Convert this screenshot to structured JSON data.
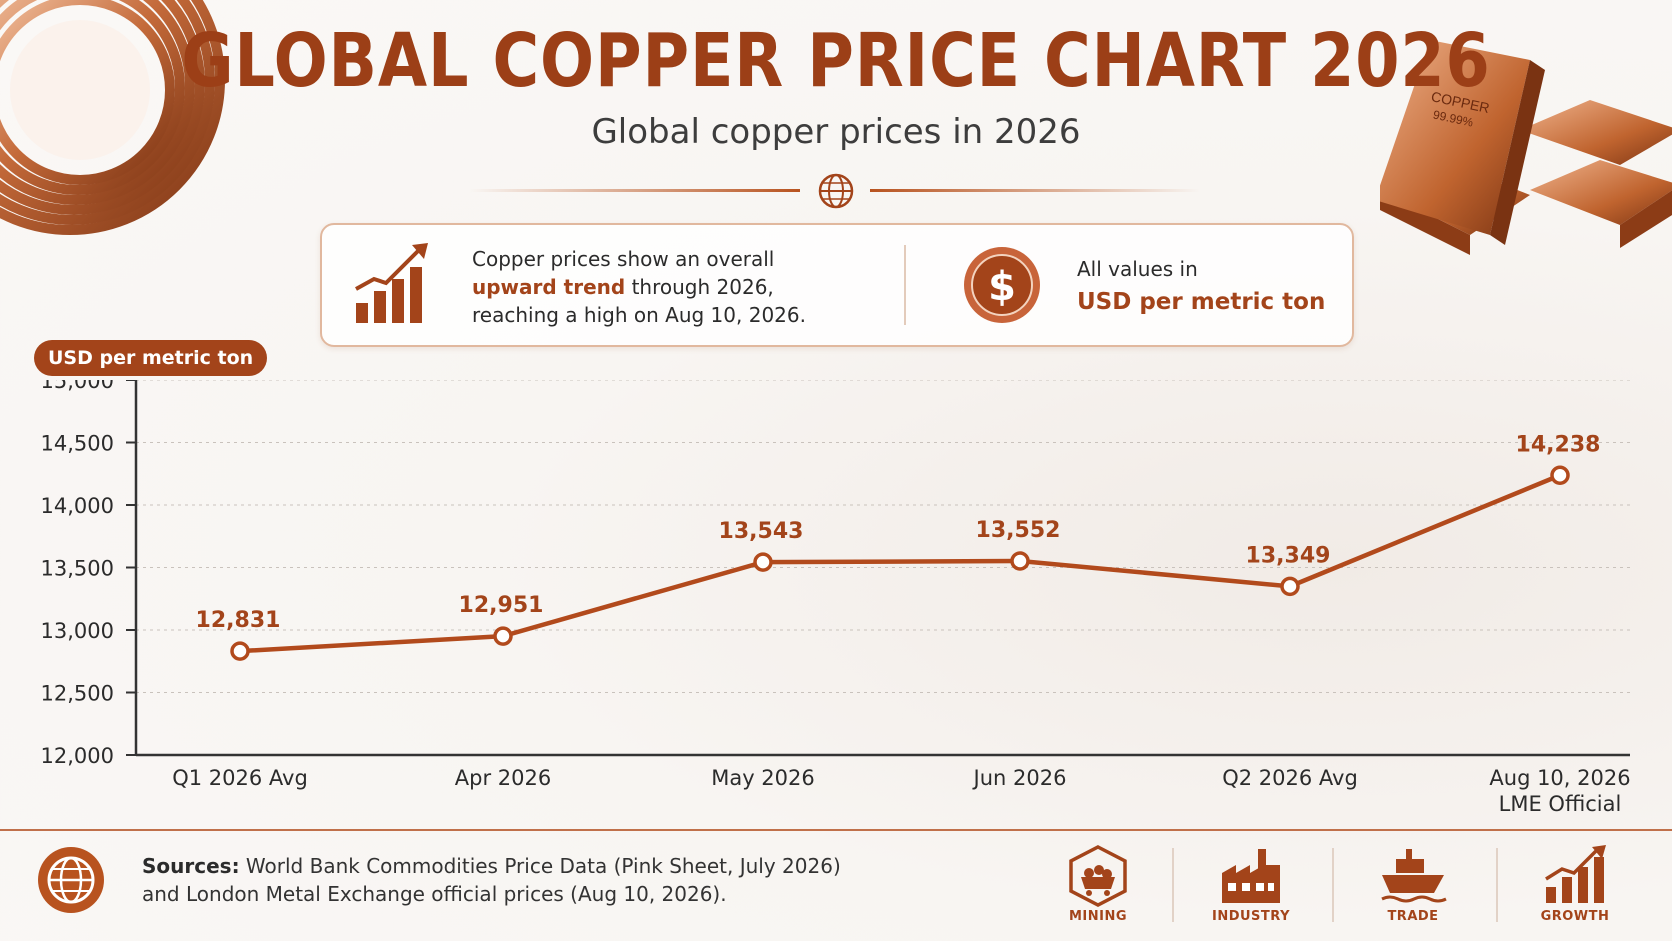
{
  "header": {
    "title": "GLOBAL COPPER PRICE CHART 2026",
    "subtitle": "Global copper prices in 2026"
  },
  "info": {
    "line1": "Copper prices show an overall",
    "highlight": "upward trend",
    "line2_rest": " through 2026,",
    "line3": "reaching a high on Aug 10, 2026.",
    "values_label": "All values in",
    "values_unit": "USD per metric ton"
  },
  "bars_label": {
    "text1": "COPPER",
    "text2": "99.99%"
  },
  "unit_badge": "USD per metric ton",
  "chart_data": {
    "type": "line",
    "categories": [
      "Q1 2026 Avg",
      "Apr 2026",
      "May 2026",
      "Jun 2026",
      "Q2 2026 Avg",
      "Aug 10, 2026\nLME Official"
    ],
    "series": [
      {
        "values": [
          12831,
          12951,
          13543,
          13552,
          13349,
          14238
        ]
      }
    ],
    "data_labels": [
      "12,831",
      "12,951",
      "13,543",
      "13,552",
      "13,349",
      "14,238"
    ],
    "yticks": [
      "15,000",
      "14,500",
      "14,000",
      "13,500",
      "13,000",
      "12,500",
      "12,000"
    ],
    "ylim": [
      12000,
      15000
    ],
    "grid": true,
    "line_color": "#b24a1c"
  },
  "footer": {
    "sources_label": "Sources:",
    "sources_line1": " World Bank Commodities Price Data (Pink Sheet, July 2026)",
    "sources_line2": "and London Metal Exchange official prices (Aug 10, 2026).",
    "categories": [
      "MINING",
      "INDUSTRY",
      "TRADE",
      "GROWTH"
    ]
  },
  "colors": {
    "accent": "#a3441a",
    "title": "#9c3f17",
    "background": "#f8f5f2"
  }
}
